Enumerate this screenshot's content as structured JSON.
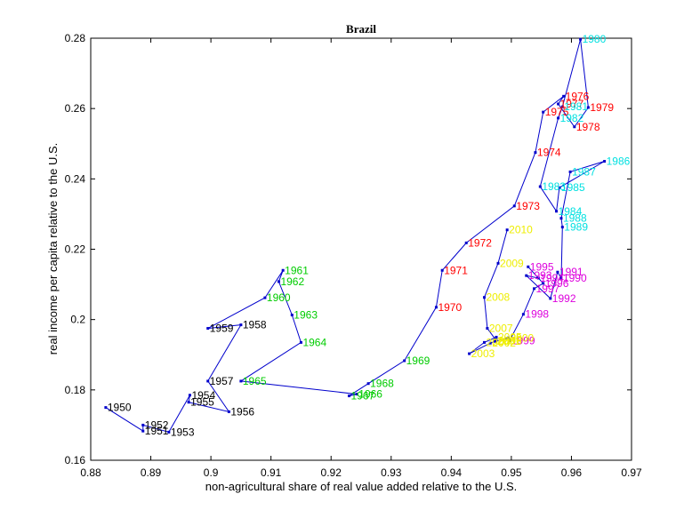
{
  "chart_data": {
    "type": "scatter",
    "title": "Brazil",
    "xlabel": "non-agricultural share of real value added relative to the U.S.",
    "ylabel": "real income per capita relative to the U.S.",
    "xlim": [
      0.88,
      0.97
    ],
    "ylim": [
      0.16,
      0.28
    ],
    "xticks": [
      "0.88",
      "0.89",
      "0.9",
      "0.91",
      "0.92",
      "0.93",
      "0.94",
      "0.95",
      "0.96",
      "0.97"
    ],
    "yticks": [
      "0.16",
      "0.18",
      "0.2",
      "0.22",
      "0.24",
      "0.26",
      "0.28"
    ],
    "grid": false,
    "line_color": "#0000cc",
    "decade_colors": {
      "1950s": "#000000",
      "1960s": "#00cc00",
      "1970s": "#ff0000",
      "1980s": "#00e0e0",
      "1990s": "#dd00dd",
      "2000s": "#eeee00"
    },
    "points": [
      {
        "year": "1950",
        "x": 0.8825,
        "y": 0.175
      },
      {
        "year": "1951",
        "x": 0.8887,
        "y": 0.1683
      },
      {
        "year": "1952",
        "x": 0.8887,
        "y": 0.17
      },
      {
        "year": "1953",
        "x": 0.893,
        "y": 0.168
      },
      {
        "year": "1954",
        "x": 0.8965,
        "y": 0.1785
      },
      {
        "year": "1955",
        "x": 0.8963,
        "y": 0.1765
      },
      {
        "year": "1956",
        "x": 0.903,
        "y": 0.1738
      },
      {
        "year": "1957",
        "x": 0.8995,
        "y": 0.1825
      },
      {
        "year": "1958",
        "x": 0.905,
        "y": 0.1985
      },
      {
        "year": "1959",
        "x": 0.8995,
        "y": 0.1975
      },
      {
        "year": "1960",
        "x": 0.909,
        "y": 0.2062
      },
      {
        "year": "1961",
        "x": 0.912,
        "y": 0.214
      },
      {
        "year": "1962",
        "x": 0.9113,
        "y": 0.2108
      },
      {
        "year": "1963",
        "x": 0.9135,
        "y": 0.2013
      },
      {
        "year": "1964",
        "x": 0.915,
        "y": 0.1935
      },
      {
        "year": "1965",
        "x": 0.905,
        "y": 0.1825
      },
      {
        "year": "1966",
        "x": 0.9243,
        "y": 0.1788
      },
      {
        "year": "1967",
        "x": 0.923,
        "y": 0.1783
      },
      {
        "year": "1968",
        "x": 0.9262,
        "y": 0.1818
      },
      {
        "year": "1969",
        "x": 0.9322,
        "y": 0.1883
      },
      {
        "year": "1970",
        "x": 0.9375,
        "y": 0.2035
      },
      {
        "year": "1971",
        "x": 0.9385,
        "y": 0.214
      },
      {
        "year": "1972",
        "x": 0.9425,
        "y": 0.2218
      },
      {
        "year": "1973",
        "x": 0.9505,
        "y": 0.2323
      },
      {
        "year": "1974",
        "x": 0.954,
        "y": 0.2475
      },
      {
        "year": "1975",
        "x": 0.9553,
        "y": 0.259
      },
      {
        "year": "1976",
        "x": 0.9587,
        "y": 0.2635
      },
      {
        "year": "1977",
        "x": 0.9578,
        "y": 0.2613
      },
      {
        "year": "1978",
        "x": 0.9605,
        "y": 0.2548
      },
      {
        "year": "1979",
        "x": 0.9628,
        "y": 0.2603
      },
      {
        "year": "1980",
        "x": 0.9615,
        "y": 0.2797
      },
      {
        "year": "1981",
        "x": 0.9585,
        "y": 0.2605
      },
      {
        "year": "1982",
        "x": 0.9578,
        "y": 0.2573
      },
      {
        "year": "1983",
        "x": 0.9548,
        "y": 0.2378
      },
      {
        "year": "1984",
        "x": 0.9575,
        "y": 0.2308
      },
      {
        "year": "1985",
        "x": 0.958,
        "y": 0.2375
      },
      {
        "year": "1986",
        "x": 0.9655,
        "y": 0.245
      },
      {
        "year": "1987",
        "x": 0.9598,
        "y": 0.242
      },
      {
        "year": "1988",
        "x": 0.9583,
        "y": 0.2288
      },
      {
        "year": "1989",
        "x": 0.9585,
        "y": 0.2263
      },
      {
        "year": "1990",
        "x": 0.9583,
        "y": 0.2118
      },
      {
        "year": "1991",
        "x": 0.9577,
        "y": 0.2135
      },
      {
        "year": "1992",
        "x": 0.9565,
        "y": 0.206
      },
      {
        "year": "1993",
        "x": 0.9525,
        "y": 0.2125
      },
      {
        "year": "1994",
        "x": 0.9545,
        "y": 0.2118
      },
      {
        "year": "1995",
        "x": 0.9528,
        "y": 0.215
      },
      {
        "year": "1996",
        "x": 0.9553,
        "y": 0.2103
      },
      {
        "year": "1997",
        "x": 0.9538,
        "y": 0.2088
      },
      {
        "year": "1998",
        "x": 0.952,
        "y": 0.2015
      },
      {
        "year": "1999",
        "x": 0.9497,
        "y": 0.194
      },
      {
        "year": "2000",
        "x": 0.9495,
        "y": 0.1948
      },
      {
        "year": "2001",
        "x": 0.9473,
        "y": 0.1938
      },
      {
        "year": "2002",
        "x": 0.9465,
        "y": 0.1933
      },
      {
        "year": "2003",
        "x": 0.943,
        "y": 0.1903
      },
      {
        "year": "2004",
        "x": 0.9455,
        "y": 0.1935
      },
      {
        "year": "2005",
        "x": 0.9475,
        "y": 0.195
      },
      {
        "year": "2006",
        "x": 0.9475,
        "y": 0.194
      },
      {
        "year": "2007",
        "x": 0.946,
        "y": 0.1975
      },
      {
        "year": "2008",
        "x": 0.9455,
        "y": 0.2063
      },
      {
        "year": "2009",
        "x": 0.9478,
        "y": 0.216
      },
      {
        "year": "2010",
        "x": 0.9493,
        "y": 0.2255
      }
    ]
  }
}
